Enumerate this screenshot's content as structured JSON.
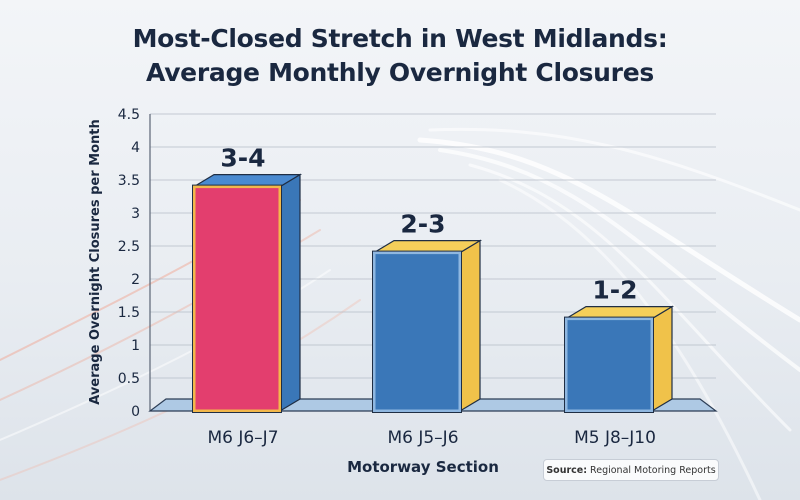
{
  "title_line1": "Most-Closed Stretch in West Midlands:",
  "title_line2": "Average Monthly Overnight Closures",
  "source": {
    "label": "Source:",
    "text": "Regional Motoring Reports"
  },
  "chart_data": {
    "type": "bar",
    "categories": [
      "M6 J6–J7",
      "M6 J5–J6",
      "M5 J8–J10"
    ],
    "values": [
      3.4,
      2.4,
      1.4
    ],
    "data_labels": [
      "3-4",
      "2-3",
      "1-2"
    ],
    "xlabel": "Motorway Section",
    "ylabel": "Average Overnight Closures per Month",
    "ylim": [
      0,
      4.5
    ],
    "yticks": [
      "0",
      "0.5",
      "1",
      "1.5",
      "2",
      "2.5",
      "3",
      "3.5",
      "4",
      "4.5"
    ],
    "grid": true,
    "colors": {
      "highlight_front": "#e33e6e",
      "highlight_border": "#f2b84b",
      "bar_front": "#3a77b8",
      "bar_side": "#f0c24a",
      "bar_top": "#f5cf5a",
      "highlight_side": "#3a77b8",
      "highlight_top": "#4a8ad0"
    }
  }
}
